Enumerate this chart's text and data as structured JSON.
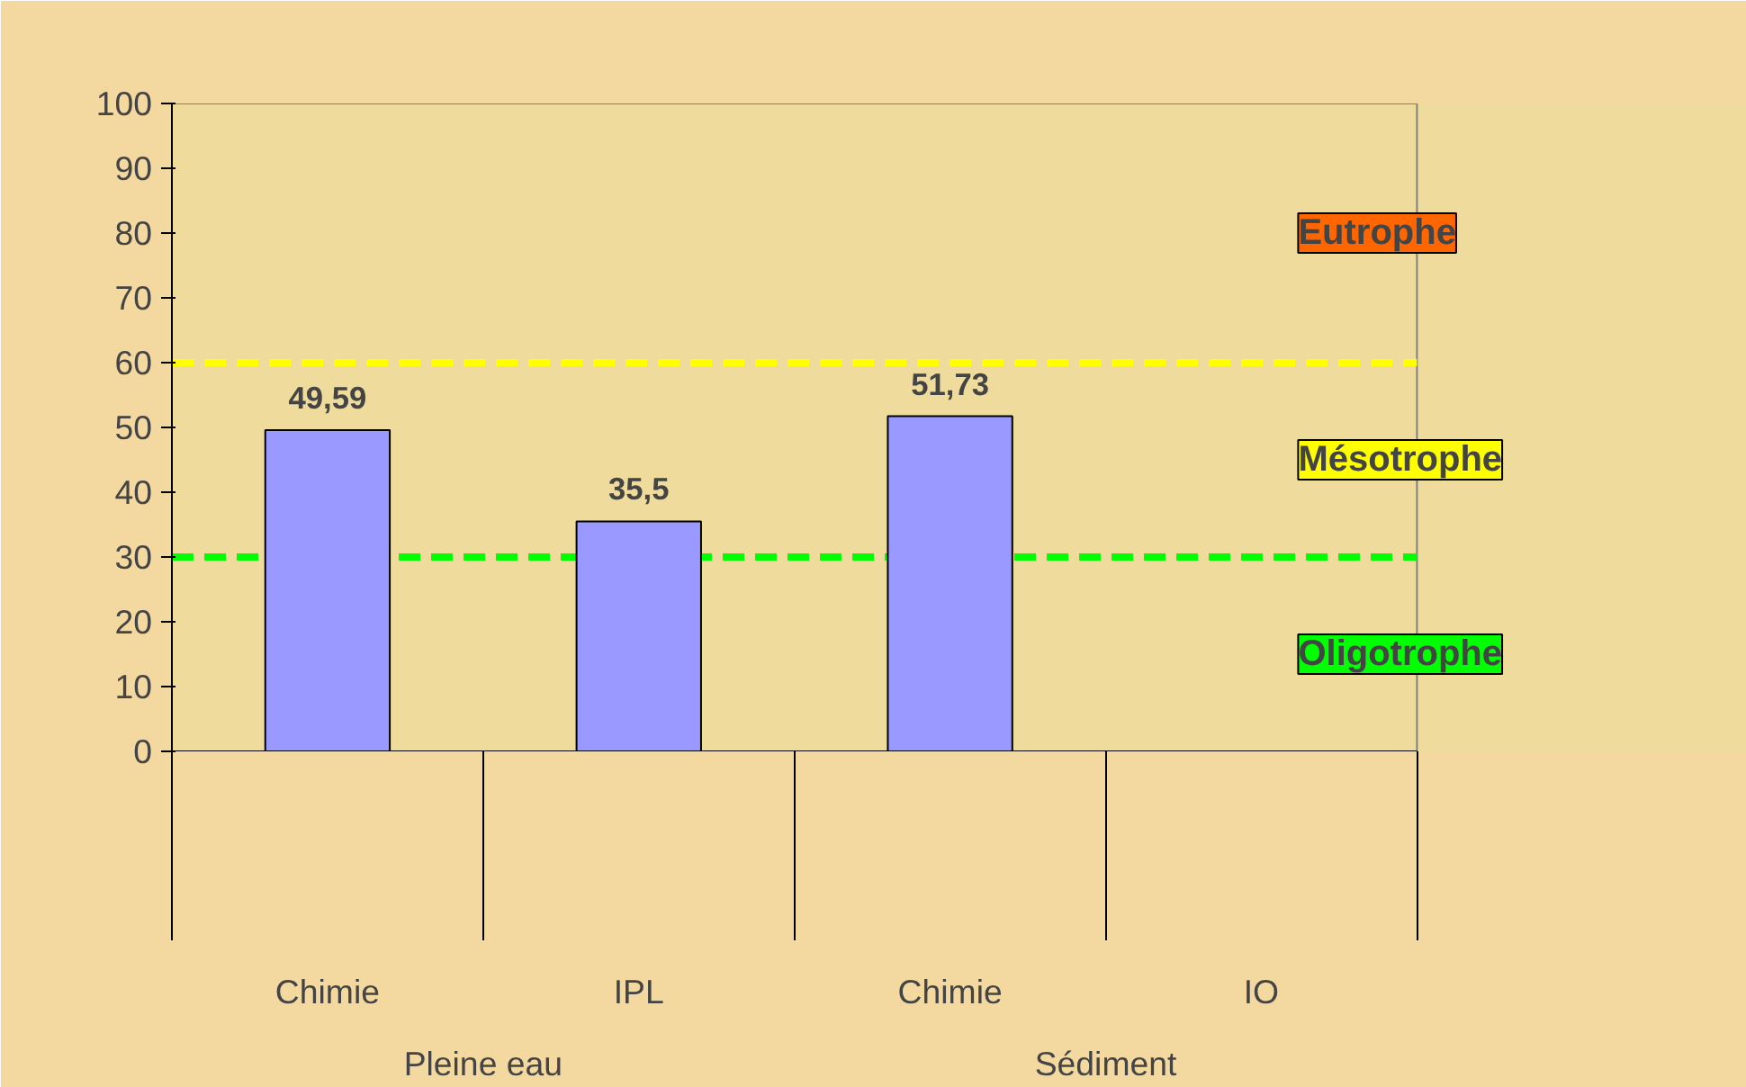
{
  "chart_data": {
    "type": "bar",
    "categories": [
      "Chimie",
      "IPL",
      "Chimie",
      "IO"
    ],
    "values": [
      49.59,
      35.5,
      51.73,
      null
    ],
    "value_labels": [
      "49,59",
      "35,5",
      "51,73",
      null
    ],
    "color": "#9999ff",
    "ylim": [
      0,
      100
    ],
    "yticks": [
      0,
      10,
      20,
      30,
      40,
      50,
      60,
      70,
      80,
      90,
      100
    ],
    "grid": false,
    "ref_lines": [
      {
        "axis": "y",
        "value": 60,
        "color": "#ffff00",
        "line_style": "dashed"
      },
      {
        "axis": "y",
        "value": 30,
        "color": "#00ff00",
        "line_style": "dashed"
      }
    ],
    "annotations": [
      "Pleine eau",
      "Sédiment",
      "Eutrophe",
      "Mésotrophe",
      "Oligotrophe"
    ]
  }
}
